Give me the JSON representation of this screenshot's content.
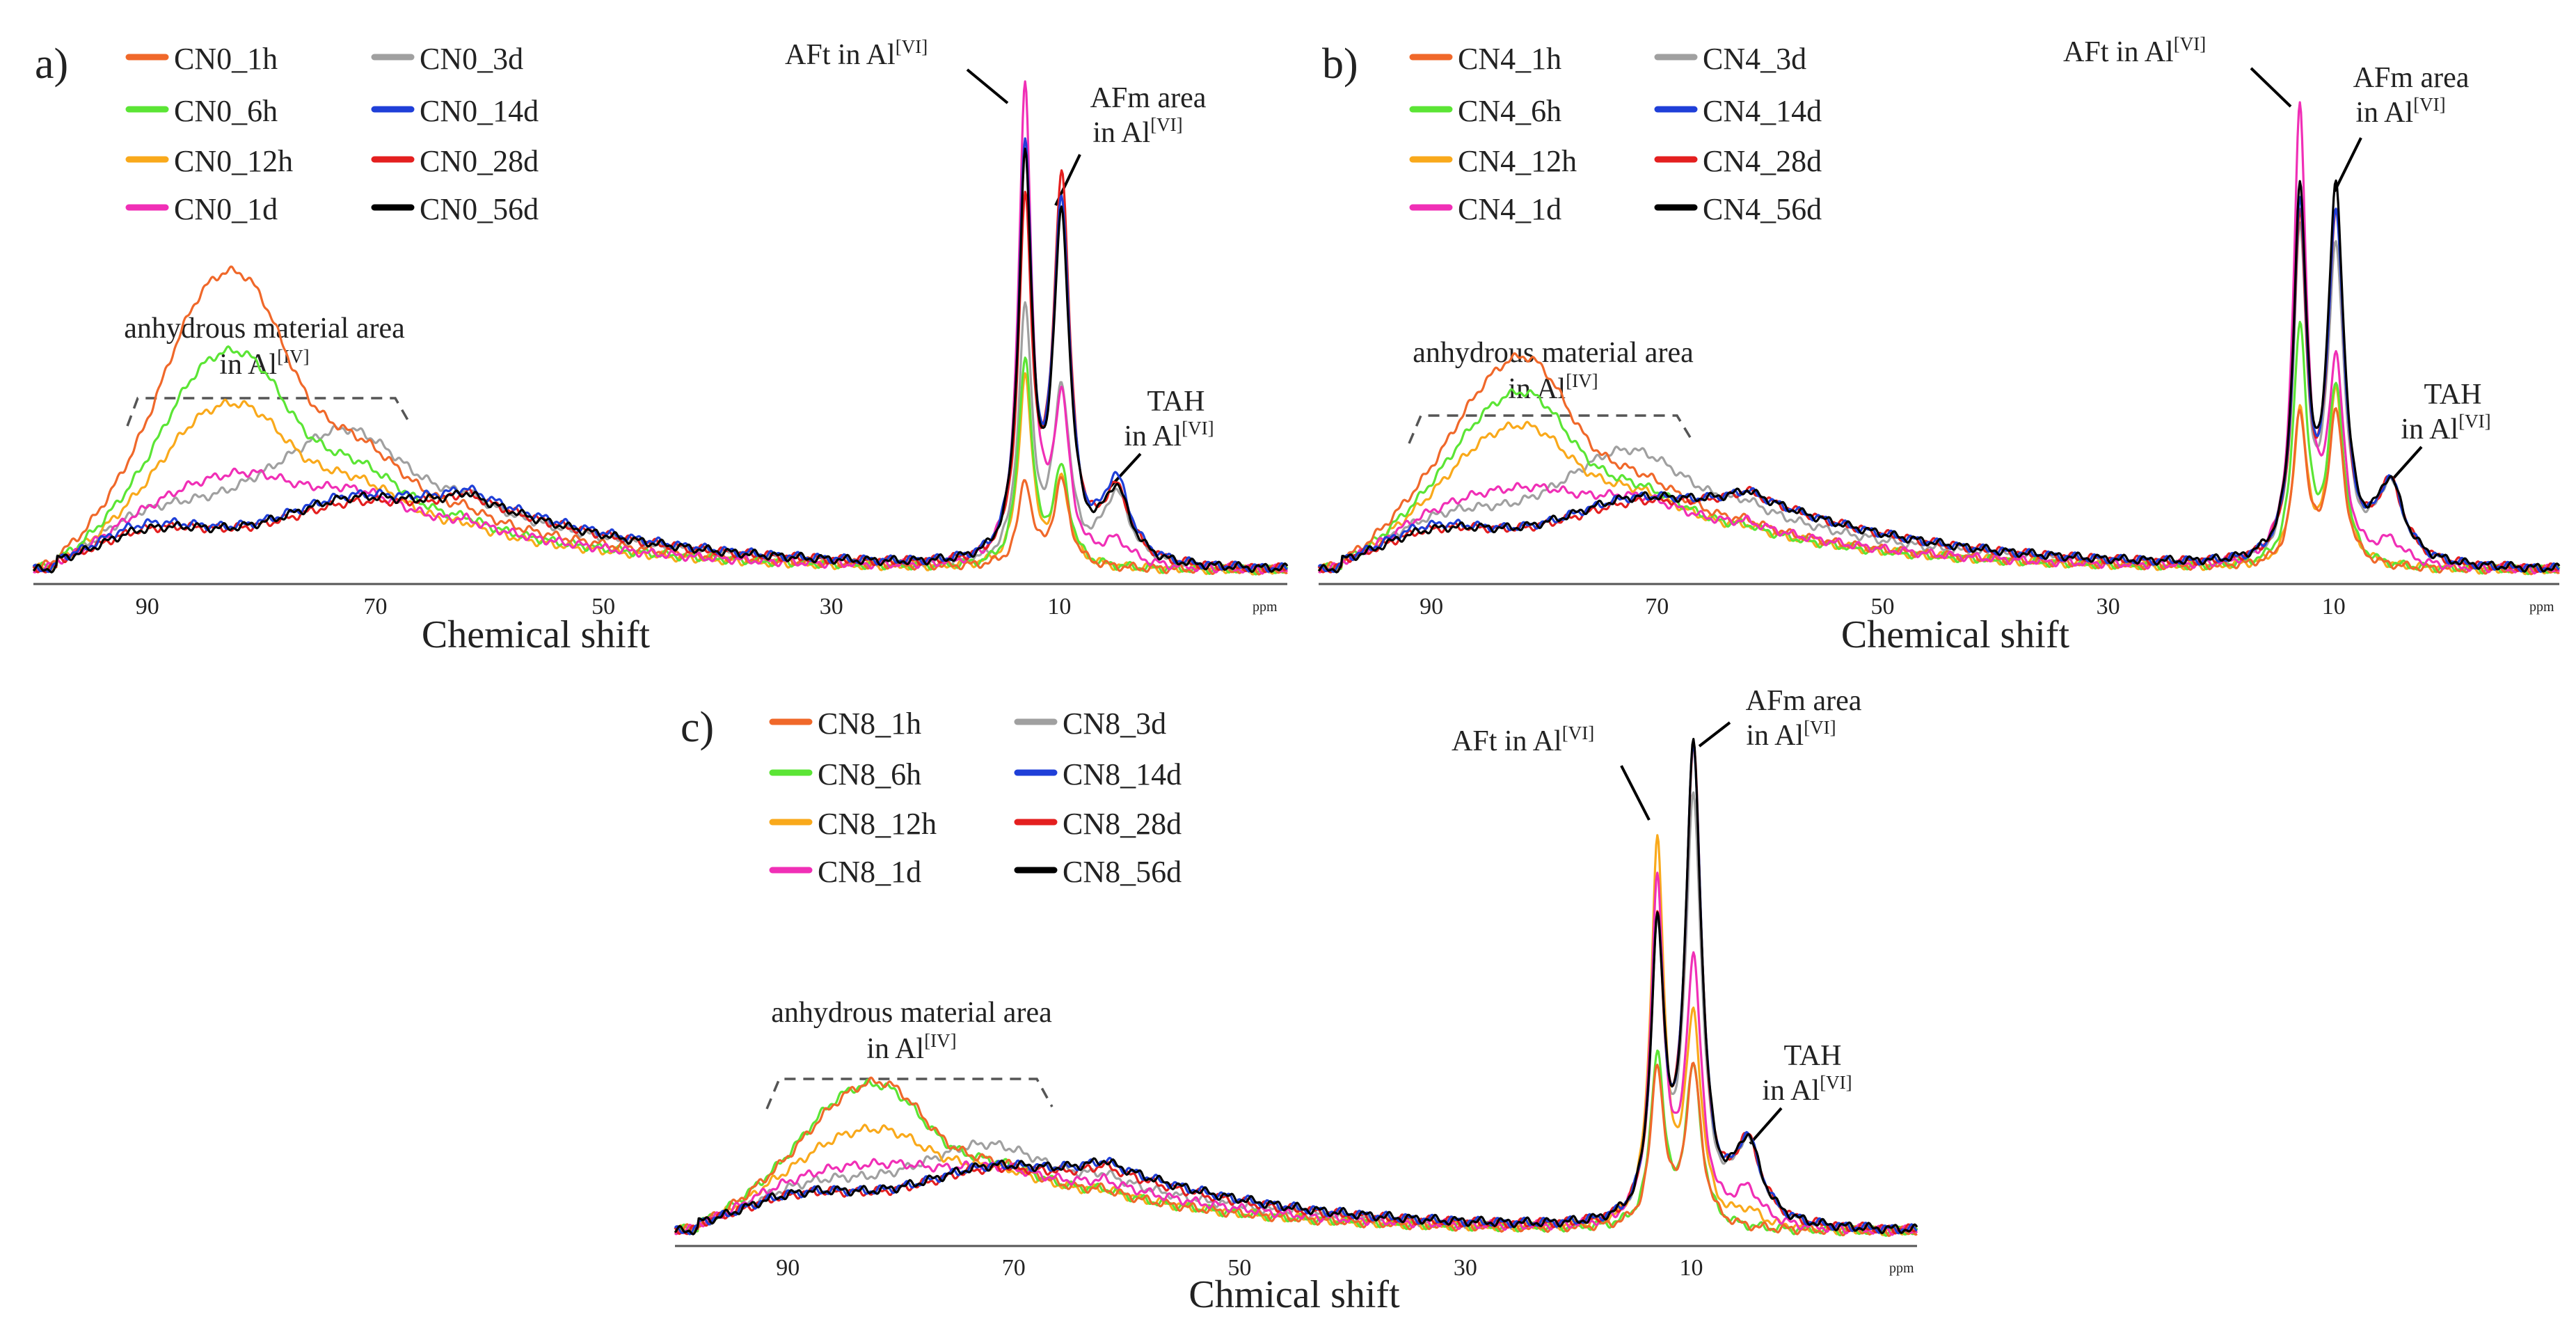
{
  "series_colors": {
    "1h": "#F0682A",
    "6h": "#5BE535",
    "12h": "#F9A91B",
    "1d": "#F02FB6",
    "3d": "#A0A0A0",
    "14d": "#1F3FD8",
    "28d": "#E41F1F",
    "56d": "#000000"
  },
  "chart_data": [
    {
      "type": "line",
      "panel_label": "a)",
      "xlabel": "Chemical shift",
      "x_unit": "ppm",
      "xlim": [
        100,
        -10
      ],
      "xticks": [
        "90",
        "70",
        "50",
        "30",
        "10"
      ],
      "legend": [
        "CN0_1h",
        "CN0_3d",
        "CN0_6h",
        "CN0_14d",
        "CN0_12h",
        "CN0_28d",
        "CN0_1d",
        "CN0_56d"
      ],
      "annotations": {
        "anhydrous": [
          "anhydrous material area",
          "in Al",
          "[IV]"
        ],
        "aft": [
          "AFt in Al",
          "[VI]"
        ],
        "afm": [
          "AFm area",
          "in Al",
          "[VI]"
        ],
        "tah": [
          "TAH",
          "in Al",
          "[VI]"
        ]
      },
      "series": [
        {
          "name": "CN0_1h",
          "key": "1h",
          "params": [
            0.33,
            0.43,
            0.16,
            0.22,
            0.12,
            0.18,
            0.18,
            0.0
          ]
        },
        {
          "name": "CN0_3d",
          "key": "3d",
          "params": [
            0.06,
            0.07,
            0.08,
            0.22,
            0.15,
            0.53,
            0.36,
            0.15
          ]
        },
        {
          "name": "CN0_6h",
          "key": "6h",
          "params": [
            0.24,
            0.31,
            0.12,
            0.18,
            0.1,
            0.44,
            0.2,
            0.0
          ]
        },
        {
          "name": "CN0_14d",
          "key": "14d",
          "params": [
            0.03,
            0.02,
            0.06,
            0.07,
            0.17,
            0.85,
            0.74,
            0.17
          ]
        },
        {
          "name": "CN0_12h",
          "key": "12h",
          "params": [
            0.18,
            0.23,
            0.1,
            0.15,
            0.09,
            0.4,
            0.18,
            0.0
          ]
        },
        {
          "name": "CN0_28d",
          "key": "28d",
          "params": [
            0.03,
            0.02,
            0.05,
            0.06,
            0.16,
            0.73,
            0.8,
            0.15
          ]
        },
        {
          "name": "CN0_1d",
          "key": "1d",
          "params": [
            0.09,
            0.12,
            0.08,
            0.12,
            0.1,
            1.0,
            0.33,
            0.05
          ]
        },
        {
          "name": "CN0_56d",
          "key": "56d",
          "params": [
            0.03,
            0.02,
            0.05,
            0.07,
            0.16,
            0.83,
            0.71,
            0.15
          ]
        }
      ]
    },
    {
      "type": "line",
      "panel_label": "b)",
      "xlabel": "Chemical shift",
      "x_unit": "ppm",
      "xlim": [
        100,
        -10
      ],
      "xticks": [
        "90",
        "70",
        "50",
        "30",
        "10"
      ],
      "legend": [
        "CN4_1h",
        "CN4_3d",
        "CN4_6h",
        "CN4_14d",
        "CN4_12h",
        "CN4_28d",
        "CN4_1d",
        "CN4_56d"
      ],
      "annotations": {
        "anhydrous": [
          "anhydrous material area",
          "in Al",
          "[IV]"
        ],
        "aft": [
          "AFt in Al",
          "[VI]"
        ],
        "afm": [
          "AFm area",
          "in Al",
          "[VI]"
        ],
        "tah": [
          "TAH",
          "in Al",
          "[VI]"
        ]
      },
      "series": [
        {
          "name": "CN4_1h",
          "key": "1h",
          "params": [
            0.21,
            0.33,
            0.12,
            0.16,
            0.1,
            0.33,
            0.33,
            0.0
          ]
        },
        {
          "name": "CN4_3d",
          "key": "3d",
          "params": [
            0.06,
            0.05,
            0.07,
            0.19,
            0.14,
            0.7,
            0.67,
            0.17
          ]
        },
        {
          "name": "CN4_6h",
          "key": "6h",
          "params": [
            0.18,
            0.27,
            0.1,
            0.14,
            0.09,
            0.52,
            0.38,
            0.0
          ]
        },
        {
          "name": "CN4_14d",
          "key": "14d",
          "params": [
            0.03,
            0.02,
            0.06,
            0.07,
            0.17,
            0.75,
            0.74,
            0.17
          ]
        },
        {
          "name": "CN4_12h",
          "key": "12h",
          "params": [
            0.15,
            0.21,
            0.09,
            0.13,
            0.09,
            0.33,
            0.38,
            0.0
          ]
        },
        {
          "name": "CN4_28d",
          "key": "28d",
          "params": [
            0.03,
            0.02,
            0.05,
            0.06,
            0.17,
            0.72,
            0.74,
            0.17
          ]
        },
        {
          "name": "CN4_1d",
          "key": "1d",
          "params": [
            0.08,
            0.1,
            0.08,
            0.11,
            0.1,
            0.98,
            0.42,
            0.05
          ]
        },
        {
          "name": "CN4_56d",
          "key": "56d",
          "params": [
            0.03,
            0.02,
            0.05,
            0.07,
            0.17,
            0.78,
            0.79,
            0.17
          ]
        }
      ]
    },
    {
      "type": "line",
      "panel_label": "c)",
      "xlabel": "Chmical shift",
      "x_unit": "ppm",
      "xlim": [
        100,
        -10
      ],
      "xticks": [
        "90",
        "70",
        "50",
        "30",
        "10"
      ],
      "legend": [
        "CN8_1h",
        "CN8_3d",
        "CN8_6h",
        "CN8_14d",
        "CN8_12h",
        "CN8_28d",
        "CN8_1d",
        "CN8_56d"
      ],
      "annotations": {
        "anhydrous": [
          "anhydrous material area",
          "in Al",
          "[IV]"
        ],
        "aft": [
          "AFt in Al",
          "[VI]"
        ],
        "afm": [
          "AFm area",
          "in Al",
          "[VI]"
        ],
        "tah": [
          "TAH",
          "in Al",
          "[VI]"
        ]
      },
      "series": [
        {
          "name": "CN8_1h",
          "key": "1h",
          "params": [
            0.14,
            0.21,
            0.08,
            0.1,
            0.08,
            0.32,
            0.32,
            0.0
          ]
        },
        {
          "name": "CN8_3d",
          "key": "3d",
          "params": [
            0.05,
            0.04,
            0.05,
            0.12,
            0.11,
            0.57,
            0.85,
            0.16
          ]
        },
        {
          "name": "CN8_6h",
          "key": "6h",
          "params": [
            0.15,
            0.2,
            0.08,
            0.1,
            0.08,
            0.35,
            0.32,
            0.0
          ]
        },
        {
          "name": "CN8_14d",
          "key": "14d",
          "params": [
            0.03,
            0.02,
            0.04,
            0.06,
            0.14,
            0.57,
            0.95,
            0.16
          ]
        },
        {
          "name": "CN8_12h",
          "key": "12h",
          "params": [
            0.1,
            0.13,
            0.07,
            0.09,
            0.08,
            0.77,
            0.41,
            0.03
          ]
        },
        {
          "name": "CN8_28d",
          "key": "28d",
          "params": [
            0.03,
            0.02,
            0.04,
            0.06,
            0.13,
            0.57,
            0.95,
            0.16
          ]
        },
        {
          "name": "CN8_1d",
          "key": "1d",
          "params": [
            0.06,
            0.07,
            0.06,
            0.08,
            0.1,
            0.68,
            0.52,
            0.07
          ]
        },
        {
          "name": "CN8_56d",
          "key": "56d",
          "params": [
            0.03,
            0.02,
            0.04,
            0.06,
            0.14,
            0.57,
            0.95,
            0.16
          ]
        }
      ]
    }
  ]
}
